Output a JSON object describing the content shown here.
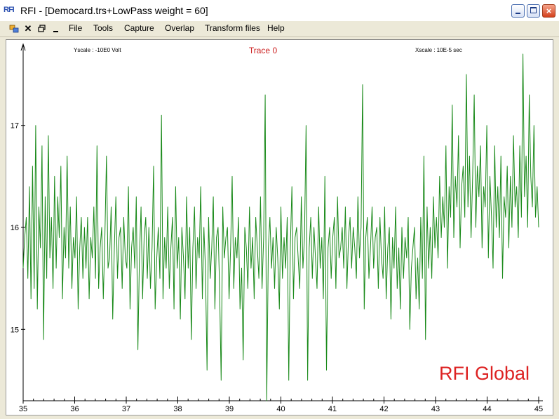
{
  "window": {
    "app_icon_text": "RFI",
    "title": "RFI  - [Democard.trs+LowPass weight = 60]"
  },
  "menu": {
    "icons": [
      "windows-icon",
      "close-doc-icon",
      "restore-doc-icon",
      "minimize-doc-icon"
    ],
    "items": [
      {
        "label": "File"
      },
      {
        "label": "Tools"
      },
      {
        "label": "Capture"
      },
      {
        "label": "Overlap"
      },
      {
        "label": "Transform files"
      },
      {
        "label": "Help"
      }
    ]
  },
  "colors": {
    "trace": "#1a8a1a",
    "trace_title": "#cc2222",
    "watermark": "#dd2222"
  },
  "chart_data": {
    "type": "line",
    "title": "Trace 0",
    "yscale_label": "Yscale :  -10E0  Volt",
    "xscale_label": "Xscale :  10E-5  sec",
    "watermark": "RFI Global",
    "xlim": [
      35,
      45
    ],
    "ylim": [
      14.3,
      17.7
    ],
    "x_ticks": [
      "35",
      "36",
      "37",
      "38",
      "39",
      "40",
      "41",
      "42",
      "43",
      "44",
      "45"
    ],
    "y_ticks": [
      "15",
      "16",
      "17"
    ],
    "grid": false,
    "series": [
      {
        "values": [
          15.6,
          15.9,
          16.1,
          15.5,
          16.4,
          15.3,
          16.6,
          15.4,
          17.0,
          15.2,
          16.2,
          15.8,
          16.8,
          14.9,
          16.3,
          15.5,
          16.9,
          15.7,
          16.1,
          15.4,
          16.5,
          15.6,
          16.3,
          15.9,
          16.6,
          15.3,
          16.0,
          15.7,
          16.7,
          15.6,
          16.2,
          15.4,
          15.9,
          15.7,
          16.3,
          15.2,
          15.8,
          16.1,
          15.5,
          16.0,
          15.6,
          16.1,
          15.3,
          15.9,
          15.7,
          16.2,
          15.5,
          16.8,
          15.4,
          15.8,
          16.0,
          15.3,
          15.9,
          16.7,
          15.6,
          15.7,
          16.2,
          15.1,
          15.8,
          16.3,
          15.5,
          15.9,
          16.0,
          15.4,
          16.1,
          15.7,
          15.6,
          16.4,
          15.2,
          15.8,
          16.0,
          15.6,
          16.3,
          14.8,
          15.7,
          16.2,
          15.3,
          15.9,
          16.1,
          15.5,
          16.0,
          15.4,
          15.8,
          16.6,
          15.2,
          15.7,
          16.0,
          15.5,
          17.1,
          15.3,
          15.9,
          15.6,
          16.2,
          15.4,
          15.8,
          16.1,
          15.2,
          16.4,
          15.6,
          15.9,
          15.1,
          16.0,
          15.7,
          15.3,
          16.3,
          15.6,
          16.0,
          14.9,
          15.8,
          16.2,
          15.4,
          15.9,
          15.7,
          16.4,
          15.3,
          16.0,
          15.6,
          14.6,
          16.1,
          15.5,
          15.8,
          16.3,
          15.2,
          15.9,
          16.0,
          15.4,
          14.5,
          16.2,
          15.7,
          15.9,
          16.0,
          15.3,
          15.8,
          16.5,
          15.4,
          15.9,
          15.7,
          16.1,
          15.2,
          15.6,
          14.7,
          16.0,
          15.8,
          15.4,
          16.2,
          15.6,
          15.9,
          15.3,
          16.1,
          15.8,
          15.5,
          16.3,
          15.4,
          15.9,
          17.3,
          14.3,
          15.8,
          16.1,
          15.6,
          15.9,
          15.4,
          16.0,
          15.7,
          15.2,
          16.2,
          15.5,
          15.9,
          15.6,
          16.1,
          14.5,
          15.8,
          16.4,
          15.3,
          15.9,
          16.0,
          15.7,
          15.4,
          16.3,
          15.6,
          15.9,
          17.0,
          14.5,
          15.8,
          16.1,
          15.5,
          16.0,
          15.7,
          15.4,
          16.2,
          15.6,
          15.9,
          15.3,
          16.5,
          14.6,
          15.8,
          16.0,
          15.5,
          15.9,
          16.1,
          15.4,
          16.3,
          15.7,
          15.8,
          16.0,
          15.6,
          16.2,
          15.4,
          15.9,
          16.1,
          15.6,
          16.0,
          15.8,
          15.5,
          16.3,
          15.7,
          16.0,
          17.4,
          15.2,
          15.9,
          16.1,
          15.5,
          15.8,
          16.2,
          15.6,
          15.9,
          16.0,
          15.4,
          16.1,
          15.7,
          15.5,
          16.2,
          15.3,
          15.8,
          16.0,
          15.1,
          15.9,
          15.6,
          16.2,
          15.4,
          15.8,
          15.2,
          16.0,
          15.5,
          15.9,
          15.7,
          16.1,
          15.0,
          15.6,
          15.8,
          16.0,
          15.3,
          15.7,
          15.2,
          16.1,
          15.5,
          16.7,
          14.9,
          16.2,
          15.6,
          16.0,
          15.5,
          16.3,
          15.8,
          16.1,
          15.7,
          16.5,
          15.9,
          16.3,
          16.0,
          16.8,
          15.6,
          16.4,
          16.1,
          17.2,
          15.9,
          16.5,
          16.2,
          16.9,
          15.8,
          16.4,
          16.6,
          16.1,
          17.5,
          16.2,
          16.7,
          15.9,
          16.5,
          17.3,
          16.0,
          16.6,
          16.3,
          16.8,
          15.8,
          16.4,
          16.2,
          17.0,
          15.7,
          16.5,
          16.1,
          15.6,
          16.8,
          16.0,
          16.4,
          15.9,
          16.7,
          15.5,
          16.3,
          16.1,
          16.6,
          15.8,
          16.5,
          16.0,
          16.9,
          16.2,
          16.4,
          15.9,
          16.8,
          16.1,
          17.7,
          16.3,
          16.7,
          16.0,
          17.3,
          16.5,
          16.2,
          17.0,
          16.1,
          16.4,
          16.0
        ]
      }
    ]
  }
}
